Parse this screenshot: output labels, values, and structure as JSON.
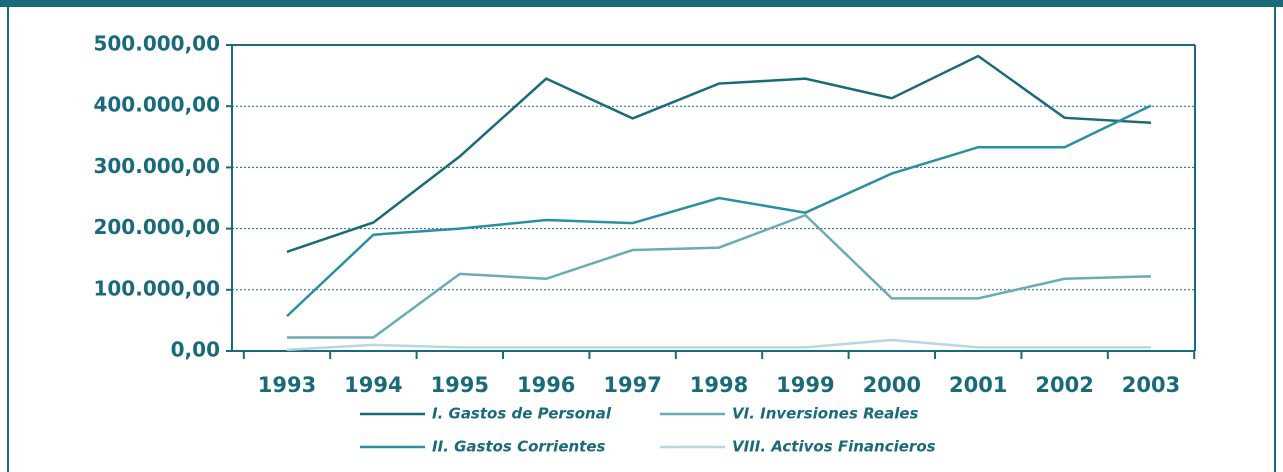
{
  "chart_data": {
    "type": "line",
    "categories": [
      "1993",
      "1994",
      "1995",
      "1996",
      "1997",
      "1998",
      "1999",
      "2000",
      "2001",
      "2002",
      "2003"
    ],
    "series": [
      {
        "name": "I. Gastos de Personal",
        "color": "#1a6b7a",
        "values": [
          162000,
          210000,
          318000,
          445000,
          380000,
          437000,
          445000,
          413000,
          482000,
          381000,
          373000
        ]
      },
      {
        "name": "II. Gastos Corrientes",
        "color": "#2a8fa0",
        "values": [
          57000,
          190000,
          200000,
          214000,
          209000,
          250000,
          226000,
          290000,
          333000,
          333000,
          401000
        ]
      },
      {
        "name": "VI. Inversiones Reales",
        "color": "#6aabb5",
        "values": [
          22000,
          22000,
          126000,
          118000,
          165000,
          169000,
          222000,
          86000,
          86000,
          118000,
          122000
        ]
      },
      {
        "name": "VIII. Activos Financieros",
        "color": "#b8d8e0",
        "values": [
          2000,
          10000,
          6000,
          6000,
          6000,
          6000,
          6000,
          18000,
          6000,
          6000,
          6000
        ]
      }
    ],
    "ylim": [
      0,
      500000
    ],
    "yticks": [
      {
        "value": 0,
        "label": "0,00"
      },
      {
        "value": 100000,
        "label": "100.000,00"
      },
      {
        "value": 200000,
        "label": "200.000,00"
      },
      {
        "value": 300000,
        "label": "300.000,00"
      },
      {
        "value": 400000,
        "label": "400.000,00"
      },
      {
        "value": 500000,
        "label": "500.000,00"
      }
    ],
    "grid": true
  }
}
